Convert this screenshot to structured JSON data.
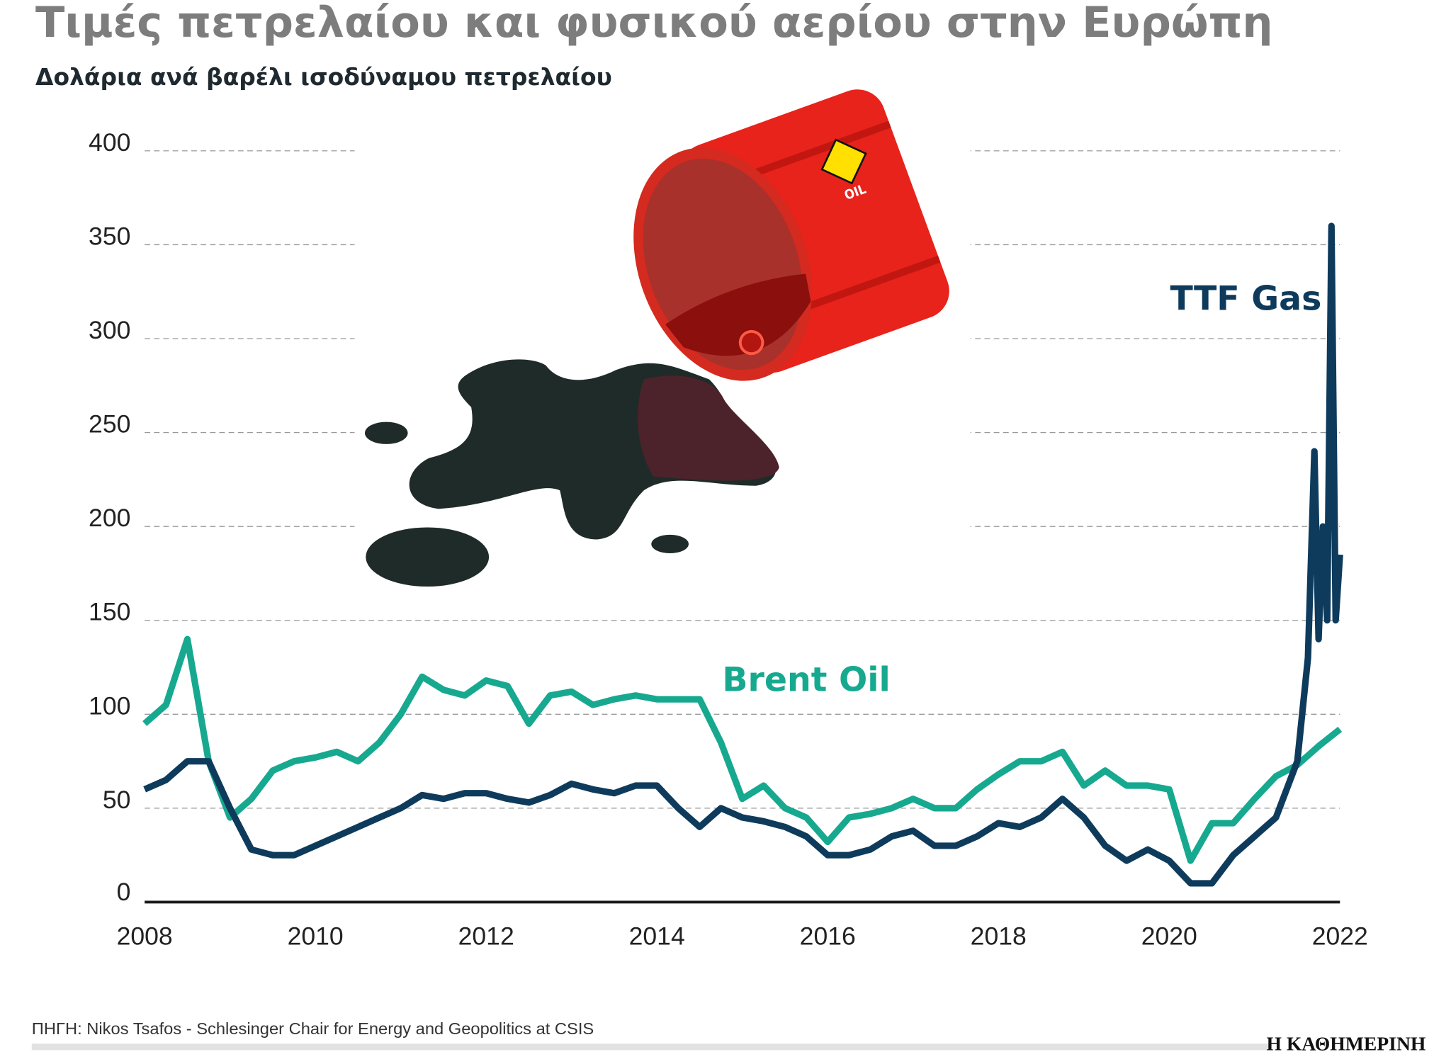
{
  "header": {
    "title": "Τιμές πετρελαίου και φυσικού αερίου στην Ευρώπη",
    "subtitle": "Δολάρια ανά βαρέλι ισοδύναμου πετρελαίου"
  },
  "footer": {
    "source": "ΠΗΓΗ: Nikos Tsafos - Schlesinger Chair for Energy and Geopolitics at CSIS",
    "logo": "Η ΚΑΘΗΜΕΡΙΝΗ"
  },
  "illustration": {
    "barrel_label": "OIL"
  },
  "chart_data": {
    "type": "line",
    "title": "Τιμές πετρελαίου και φυσικού αερίου στην Ευρώπη",
    "ylabel": "Δολάρια ανά βαρέλι ισοδύναμου πετρελαίου",
    "xlim": [
      2008,
      2022
    ],
    "ylim": [
      0,
      400
    ],
    "xticks": [
      "2008",
      "2010",
      "2012",
      "2014",
      "2016",
      "2018",
      "2020",
      "2022"
    ],
    "yticks": [
      "0",
      "50",
      "100",
      "150",
      "200",
      "250",
      "300",
      "350",
      "400"
    ],
    "grid": true,
    "series": [
      {
        "name": "Brent Oil",
        "color": "#17a98f",
        "x": [
          2008,
          2008.25,
          2008.5,
          2008.75,
          2009,
          2009.25,
          2009.5,
          2009.75,
          2010,
          2010.25,
          2010.5,
          2010.75,
          2011,
          2011.25,
          2011.5,
          2011.75,
          2012,
          2012.25,
          2012.5,
          2012.75,
          2013,
          2013.25,
          2013.5,
          2013.75,
          2014,
          2014.25,
          2014.5,
          2014.75,
          2015,
          2015.25,
          2015.5,
          2015.75,
          2016,
          2016.25,
          2016.5,
          2016.75,
          2017,
          2017.25,
          2017.5,
          2017.75,
          2018,
          2018.25,
          2018.5,
          2018.75,
          2019,
          2019.25,
          2019.5,
          2019.75,
          2020,
          2020.25,
          2020.5,
          2020.75,
          2021,
          2021.25,
          2021.5,
          2021.75,
          2022
        ],
        "y": [
          95,
          105,
          140,
          75,
          45,
          55,
          70,
          75,
          77,
          80,
          75,
          85,
          100,
          120,
          113,
          110,
          118,
          115,
          95,
          110,
          112,
          105,
          108,
          110,
          108,
          108,
          108,
          85,
          55,
          62,
          50,
          45,
          32,
          45,
          47,
          50,
          55,
          50,
          50,
          60,
          68,
          75,
          75,
          80,
          62,
          70,
          62,
          62,
          60,
          22,
          42,
          42,
          55,
          67,
          73,
          83,
          92
        ]
      },
      {
        "name": "TTF Gas",
        "color": "#0e3b5c",
        "x": [
          2008,
          2008.25,
          2008.5,
          2008.75,
          2009,
          2009.25,
          2009.5,
          2009.75,
          2010,
          2010.25,
          2010.5,
          2010.75,
          2011,
          2011.25,
          2011.5,
          2011.75,
          2012,
          2012.25,
          2012.5,
          2012.75,
          2013,
          2013.25,
          2013.5,
          2013.75,
          2014,
          2014.25,
          2014.5,
          2014.75,
          2015,
          2015.25,
          2015.5,
          2015.75,
          2016,
          2016.25,
          2016.5,
          2016.75,
          2017,
          2017.25,
          2017.5,
          2017.75,
          2018,
          2018.25,
          2018.5,
          2018.75,
          2019,
          2019.25,
          2019.5,
          2019.75,
          2020,
          2020.25,
          2020.5,
          2020.75,
          2021,
          2021.25,
          2021.5,
          2021.625,
          2021.7,
          2021.75,
          2021.8,
          2021.85,
          2021.9,
          2021.95,
          2022
        ],
        "y": [
          60,
          65,
          75,
          75,
          50,
          28,
          25,
          25,
          30,
          35,
          40,
          45,
          50,
          57,
          55,
          58,
          58,
          55,
          53,
          57,
          63,
          60,
          58,
          62,
          62,
          50,
          40,
          50,
          45,
          43,
          40,
          35,
          25,
          25,
          28,
          35,
          38,
          30,
          30,
          35,
          42,
          40,
          45,
          55,
          45,
          30,
          22,
          28,
          22,
          10,
          10,
          25,
          35,
          45,
          75,
          130,
          240,
          140,
          200,
          150,
          360,
          150,
          185
        ]
      }
    ],
    "annotations": [
      "TTF Gas",
      "Brent Oil"
    ]
  }
}
